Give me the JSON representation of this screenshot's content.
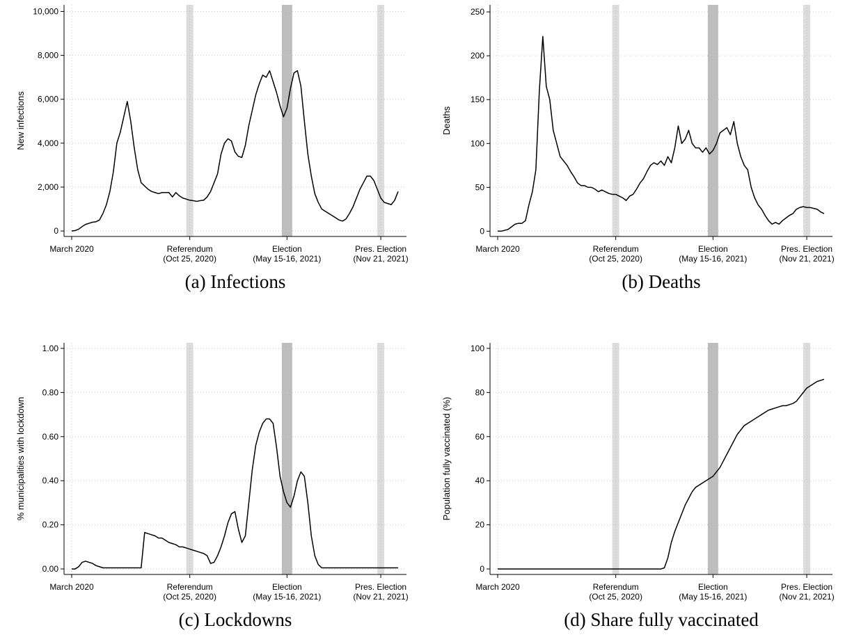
{
  "chart_data": [
    {
      "type": "line",
      "caption": "(a) Infections",
      "y_label": "New infections",
      "color": "#000000",
      "grid": true,
      "ylim": [
        -250,
        10300
      ],
      "yticks": [
        0,
        {
          "value": 2000,
          "label": "2,000"
        },
        {
          "value": 4000,
          "label": "4,000"
        },
        {
          "value": 6000,
          "label": "6,000"
        },
        {
          "value": 8000,
          "label": "8,000"
        },
        {
          "value": 10000,
          "label": "10,000"
        }
      ],
      "categories": [
        {
          "label": [
            "March 2020"
          ]
        },
        null,
        null,
        null,
        null,
        null,
        null,
        null,
        null,
        null,
        null,
        null,
        null,
        null,
        null,
        null,
        null,
        null,
        null,
        null,
        null,
        null,
        null,
        null,
        null,
        null,
        null,
        null,
        null,
        null,
        null,
        null,
        null,
        null,
        {
          "label": [
            "Referendum",
            "(Oct 25, 2020)"
          ],
          "band": "#dcdcdc"
        },
        null,
        null,
        null,
        null,
        null,
        null,
        null,
        null,
        null,
        null,
        null,
        null,
        null,
        null,
        null,
        null,
        null,
        null,
        null,
        null,
        null,
        null,
        null,
        null,
        null,
        null,
        null,
        {
          "label": [
            "Election",
            "(May 15-16, 2021)"
          ],
          "band": "#bdbdbd"
        },
        null,
        null,
        null,
        null,
        null,
        null,
        null,
        null,
        null,
        null,
        null,
        null,
        null,
        null,
        null,
        null,
        null,
        null,
        null,
        null,
        null,
        null,
        null,
        null,
        null,
        null,
        {
          "label": [
            "Pres. Election",
            "(Nov 21, 2021)"
          ],
          "band": "#dcdcdc"
        },
        null,
        null,
        null,
        null,
        null
      ],
      "values": [
        0,
        20,
        80,
        200,
        300,
        350,
        400,
        420,
        500,
        800,
        1200,
        1800,
        2700,
        4000,
        4500,
        5200,
        5900,
        5000,
        3800,
        2800,
        2200,
        2050,
        1900,
        1800,
        1750,
        1700,
        1750,
        1750,
        1750,
        1550,
        1750,
        1600,
        1500,
        1450,
        1400,
        1380,
        1350,
        1380,
        1400,
        1550,
        1800,
        2200,
        2600,
        3500,
        4000,
        4200,
        4100,
        3600,
        3400,
        3350,
        3900,
        4800,
        5500,
        6200,
        6700,
        7100,
        7000,
        7300,
        6800,
        6300,
        5700,
        5200,
        5600,
        6500,
        7200,
        7300,
        6600,
        5000,
        3500,
        2500,
        1700,
        1300,
        1000,
        900,
        800,
        700,
        600,
        500,
        450,
        550,
        800,
        1100,
        1500,
        1900,
        2200,
        2500,
        2500,
        2300,
        1900,
        1500,
        1300,
        1250,
        1200,
        1400,
        1800
      ]
    },
    {
      "type": "line",
      "caption": "(b) Deaths",
      "y_label": "Deaths",
      "color": "#000000",
      "grid": true,
      "ylim": [
        -6,
        258
      ],
      "yticks": [
        0,
        50,
        100,
        150,
        200,
        250
      ],
      "categories": [
        {
          "label": [
            "March 2020"
          ]
        },
        null,
        null,
        null,
        null,
        null,
        null,
        null,
        null,
        null,
        null,
        null,
        null,
        null,
        null,
        null,
        null,
        null,
        null,
        null,
        null,
        null,
        null,
        null,
        null,
        null,
        null,
        null,
        null,
        null,
        null,
        null,
        null,
        null,
        {
          "label": [
            "Referendum",
            "(Oct 25, 2020)"
          ],
          "band": "#dcdcdc"
        },
        null,
        null,
        null,
        null,
        null,
        null,
        null,
        null,
        null,
        null,
        null,
        null,
        null,
        null,
        null,
        null,
        null,
        null,
        null,
        null,
        null,
        null,
        null,
        null,
        null,
        null,
        null,
        {
          "label": [
            "Election",
            "(May 15-16, 2021)"
          ],
          "band": "#bdbdbd"
        },
        null,
        null,
        null,
        null,
        null,
        null,
        null,
        null,
        null,
        null,
        null,
        null,
        null,
        null,
        null,
        null,
        null,
        null,
        null,
        null,
        null,
        null,
        null,
        null,
        null,
        null,
        {
          "label": [
            "Pres. Election",
            "(Nov 21, 2021)"
          ],
          "band": "#dcdcdc"
        },
        null,
        null,
        null,
        null,
        null
      ],
      "values": [
        0,
        0,
        1,
        2,
        5,
        8,
        9,
        9,
        12,
        30,
        45,
        70,
        160,
        222,
        165,
        150,
        115,
        100,
        85,
        80,
        75,
        68,
        62,
        55,
        52,
        52,
        50,
        50,
        48,
        45,
        47,
        45,
        43,
        42,
        42,
        40,
        38,
        35,
        40,
        42,
        48,
        55,
        60,
        68,
        75,
        78,
        76,
        80,
        75,
        85,
        78,
        95,
        120,
        100,
        105,
        115,
        100,
        95,
        95,
        90,
        95,
        88,
        92,
        100,
        112,
        115,
        118,
        110,
        125,
        100,
        85,
        75,
        70,
        50,
        38,
        30,
        25,
        18,
        12,
        8,
        10,
        8,
        12,
        15,
        18,
        20,
        25,
        27,
        28,
        27,
        27,
        26,
        25,
        22,
        20
      ]
    },
    {
      "type": "line",
      "caption": "(c) Lockdowns",
      "y_label": "% municipalities with lockdown",
      "color": "#000000",
      "grid": true,
      "ylim": [
        -0.025,
        1.025
      ],
      "yticks": [
        {
          "value": 0,
          "label": "0.00"
        },
        {
          "value": 0.2,
          "label": "0.20"
        },
        {
          "value": 0.4,
          "label": "0.40"
        },
        {
          "value": 0.6,
          "label": "0.60"
        },
        {
          "value": 0.8,
          "label": "0.80"
        },
        {
          "value": 1,
          "label": "1.00"
        }
      ],
      "categories": [
        {
          "label": [
            "March 2020"
          ]
        },
        null,
        null,
        null,
        null,
        null,
        null,
        null,
        null,
        null,
        null,
        null,
        null,
        null,
        null,
        null,
        null,
        null,
        null,
        null,
        null,
        null,
        null,
        null,
        null,
        null,
        null,
        null,
        null,
        null,
        null,
        null,
        null,
        null,
        {
          "label": [
            "Referendum",
            "(Oct 25, 2020)"
          ],
          "band": "#dcdcdc"
        },
        null,
        null,
        null,
        null,
        null,
        null,
        null,
        null,
        null,
        null,
        null,
        null,
        null,
        null,
        null,
        null,
        null,
        null,
        null,
        null,
        null,
        null,
        null,
        null,
        null,
        null,
        null,
        {
          "label": [
            "Election",
            "(May 15-16, 2021)"
          ],
          "band": "#bdbdbd"
        },
        null,
        null,
        null,
        null,
        null,
        null,
        null,
        null,
        null,
        null,
        null,
        null,
        null,
        null,
        null,
        null,
        null,
        null,
        null,
        null,
        null,
        null,
        null,
        null,
        null,
        null,
        {
          "label": [
            "Pres. Election",
            "(Nov 21, 2021)"
          ],
          "band": "#dcdcdc"
        },
        null,
        null,
        null,
        null,
        null
      ],
      "values": [
        0,
        0,
        0.01,
        0.03,
        0.035,
        0.03,
        0.025,
        0.015,
        0.01,
        0.005,
        0.005,
        0.005,
        0.005,
        0.005,
        0.005,
        0.005,
        0.005,
        0.005,
        0.005,
        0.005,
        0.005,
        0.165,
        0.16,
        0.155,
        0.15,
        0.14,
        0.14,
        0.13,
        0.12,
        0.115,
        0.11,
        0.1,
        0.1,
        0.095,
        0.09,
        0.085,
        0.08,
        0.075,
        0.07,
        0.06,
        0.025,
        0.03,
        0.06,
        0.1,
        0.15,
        0.21,
        0.25,
        0.26,
        0.18,
        0.12,
        0.15,
        0.3,
        0.45,
        0.56,
        0.62,
        0.66,
        0.68,
        0.68,
        0.66,
        0.55,
        0.42,
        0.35,
        0.3,
        0.28,
        0.33,
        0.4,
        0.44,
        0.42,
        0.3,
        0.15,
        0.06,
        0.02,
        0.005,
        0.005,
        0.005,
        0.005,
        0.005,
        0.005,
        0.005,
        0.005,
        0.005,
        0.005,
        0.005,
        0.005,
        0.005,
        0.005,
        0.005,
        0.005,
        0.005,
        0.005,
        0.005,
        0.005,
        0.005,
        0.005,
        0.005
      ]
    },
    {
      "type": "line",
      "caption": "(d) Share fully vaccinated",
      "y_label": "Population fully vaccinated (%)",
      "color": "#000000",
      "grid": true,
      "ylim": [
        -2.5,
        102.5
      ],
      "yticks": [
        0,
        20,
        40,
        60,
        80,
        100
      ],
      "categories": [
        {
          "label": [
            "March 2020"
          ]
        },
        null,
        null,
        null,
        null,
        null,
        null,
        null,
        null,
        null,
        null,
        null,
        null,
        null,
        null,
        null,
        null,
        null,
        null,
        null,
        null,
        null,
        null,
        null,
        null,
        null,
        null,
        null,
        null,
        null,
        null,
        null,
        null,
        null,
        {
          "label": [
            "Referendum",
            "(Oct 25, 2020)"
          ],
          "band": "#dcdcdc"
        },
        null,
        null,
        null,
        null,
        null,
        null,
        null,
        null,
        null,
        null,
        null,
        null,
        null,
        null,
        null,
        null,
        null,
        null,
        null,
        null,
        null,
        null,
        null,
        null,
        null,
        null,
        null,
        {
          "label": [
            "Election",
            "(May 15-16, 2021)"
          ],
          "band": "#bdbdbd"
        },
        null,
        null,
        null,
        null,
        null,
        null,
        null,
        null,
        null,
        null,
        null,
        null,
        null,
        null,
        null,
        null,
        null,
        null,
        null,
        null,
        null,
        null,
        null,
        null,
        null,
        null,
        {
          "label": [
            "Pres. Election",
            "(Nov 21, 2021)"
          ],
          "band": "#dcdcdc"
        },
        null,
        null,
        null,
        null,
        null
      ],
      "values": [
        0,
        0,
        0,
        0,
        0,
        0,
        0,
        0,
        0,
        0,
        0,
        0,
        0,
        0,
        0,
        0,
        0,
        0,
        0,
        0,
        0,
        0,
        0,
        0,
        0,
        0,
        0,
        0,
        0,
        0,
        0,
        0,
        0,
        0,
        0,
        0,
        0,
        0,
        0,
        0,
        0,
        0,
        0,
        0,
        0,
        0,
        0,
        0,
        0.5,
        5,
        12,
        17,
        21,
        25,
        29,
        32,
        35,
        37,
        38,
        39,
        40,
        41,
        42,
        44,
        46,
        49,
        52,
        55,
        58,
        61,
        63,
        65,
        66,
        67,
        68,
        69,
        70,
        71,
        72,
        72.5,
        73,
        73.5,
        74,
        74,
        74.5,
        75,
        76,
        78,
        80,
        82,
        83,
        84,
        85,
        85.5,
        86
      ]
    }
  ]
}
